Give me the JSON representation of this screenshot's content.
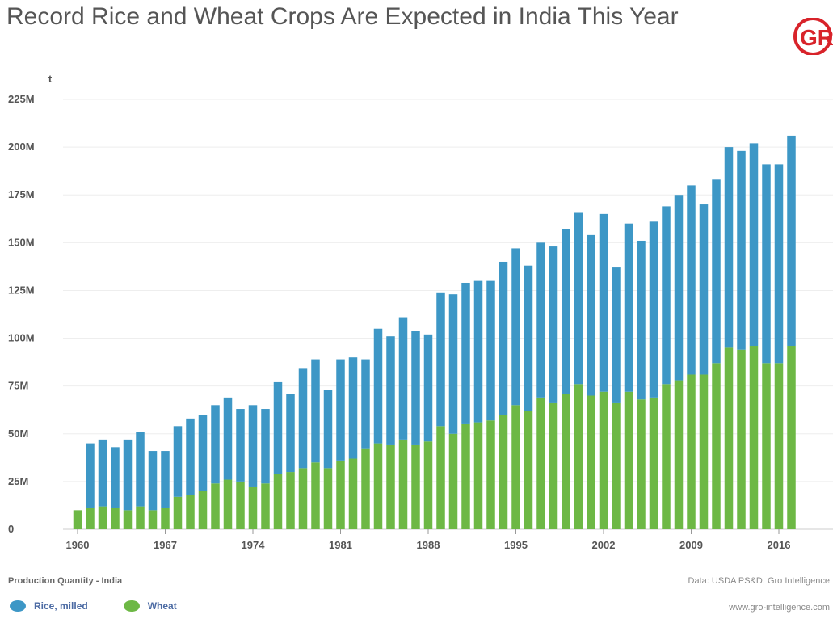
{
  "title": "Record Rice and Wheat Crops Are Expected in India This Year",
  "logo_text": "GRO",
  "footer": {
    "left": "Production Quantity - India",
    "right": "Data: USDA PS&D, Gro Intelligence",
    "website": "www.gro-intelligence.com"
  },
  "colors": {
    "rice": "#3d97c6",
    "wheat": "#6db845",
    "logo": "#d8232a"
  },
  "chart_data": {
    "type": "bar",
    "stacked": true,
    "y_unit_label": "t",
    "ylim": [
      0,
      225000000
    ],
    "y_ticks": [
      {
        "value": 0,
        "label": "0"
      },
      {
        "value": 25000000,
        "label": "25M"
      },
      {
        "value": 50000000,
        "label": "50M"
      },
      {
        "value": 75000000,
        "label": "75M"
      },
      {
        "value": 100000000,
        "label": "100M"
      },
      {
        "value": 125000000,
        "label": "125M"
      },
      {
        "value": 150000000,
        "label": "150M"
      },
      {
        "value": 175000000,
        "label": "175M"
      },
      {
        "value": 200000000,
        "label": "200M"
      },
      {
        "value": 225000000,
        "label": "225M"
      }
    ],
    "x_ticks": [
      "1960",
      "1967",
      "1974",
      "1981",
      "1988",
      "1995",
      "2002",
      "2009",
      "2016"
    ],
    "grid": true,
    "legend_position": "bottom-left",
    "x": [
      1960,
      1961,
      1962,
      1963,
      1964,
      1965,
      1966,
      1967,
      1968,
      1969,
      1970,
      1971,
      1972,
      1973,
      1974,
      1975,
      1976,
      1977,
      1978,
      1979,
      1980,
      1981,
      1982,
      1983,
      1984,
      1985,
      1986,
      1987,
      1988,
      1989,
      1990,
      1991,
      1992,
      1993,
      1994,
      1995,
      1996,
      1997,
      1998,
      1999,
      2000,
      2001,
      2002,
      2003,
      2004,
      2005,
      2006,
      2007,
      2008,
      2009,
      2010,
      2011,
      2012,
      2013,
      2014,
      2015,
      2016,
      2017
    ],
    "series": [
      {
        "name": "Wheat",
        "values": [
          10,
          11,
          12,
          11,
          10,
          12,
          10,
          11,
          17,
          18,
          20,
          24,
          26,
          25,
          22,
          24,
          29,
          30,
          32,
          35,
          32,
          36,
          37,
          42,
          45,
          44,
          47,
          44,
          46,
          54,
          50,
          55,
          56,
          57,
          60,
          65,
          62,
          69,
          66,
          71,
          76,
          70,
          72,
          66,
          72,
          68,
          69,
          76,
          78,
          81,
          81,
          87,
          95,
          94,
          96,
          87,
          87,
          96
        ]
      },
      {
        "name": "Rice, milled",
        "values": [
          0,
          34,
          35,
          32,
          37,
          39,
          31,
          30,
          37,
          40,
          40,
          41,
          43,
          38,
          43,
          39,
          48,
          41,
          52,
          54,
          41,
          53,
          53,
          47,
          60,
          57,
          64,
          60,
          56,
          70,
          73,
          74,
          74,
          73,
          80,
          82,
          76,
          81,
          82,
          86,
          90,
          84,
          93,
          71,
          88,
          83,
          92,
          93,
          97,
          99,
          89,
          96,
          105,
          104,
          106,
          104,
          104,
          110
        ]
      }
    ]
  }
}
